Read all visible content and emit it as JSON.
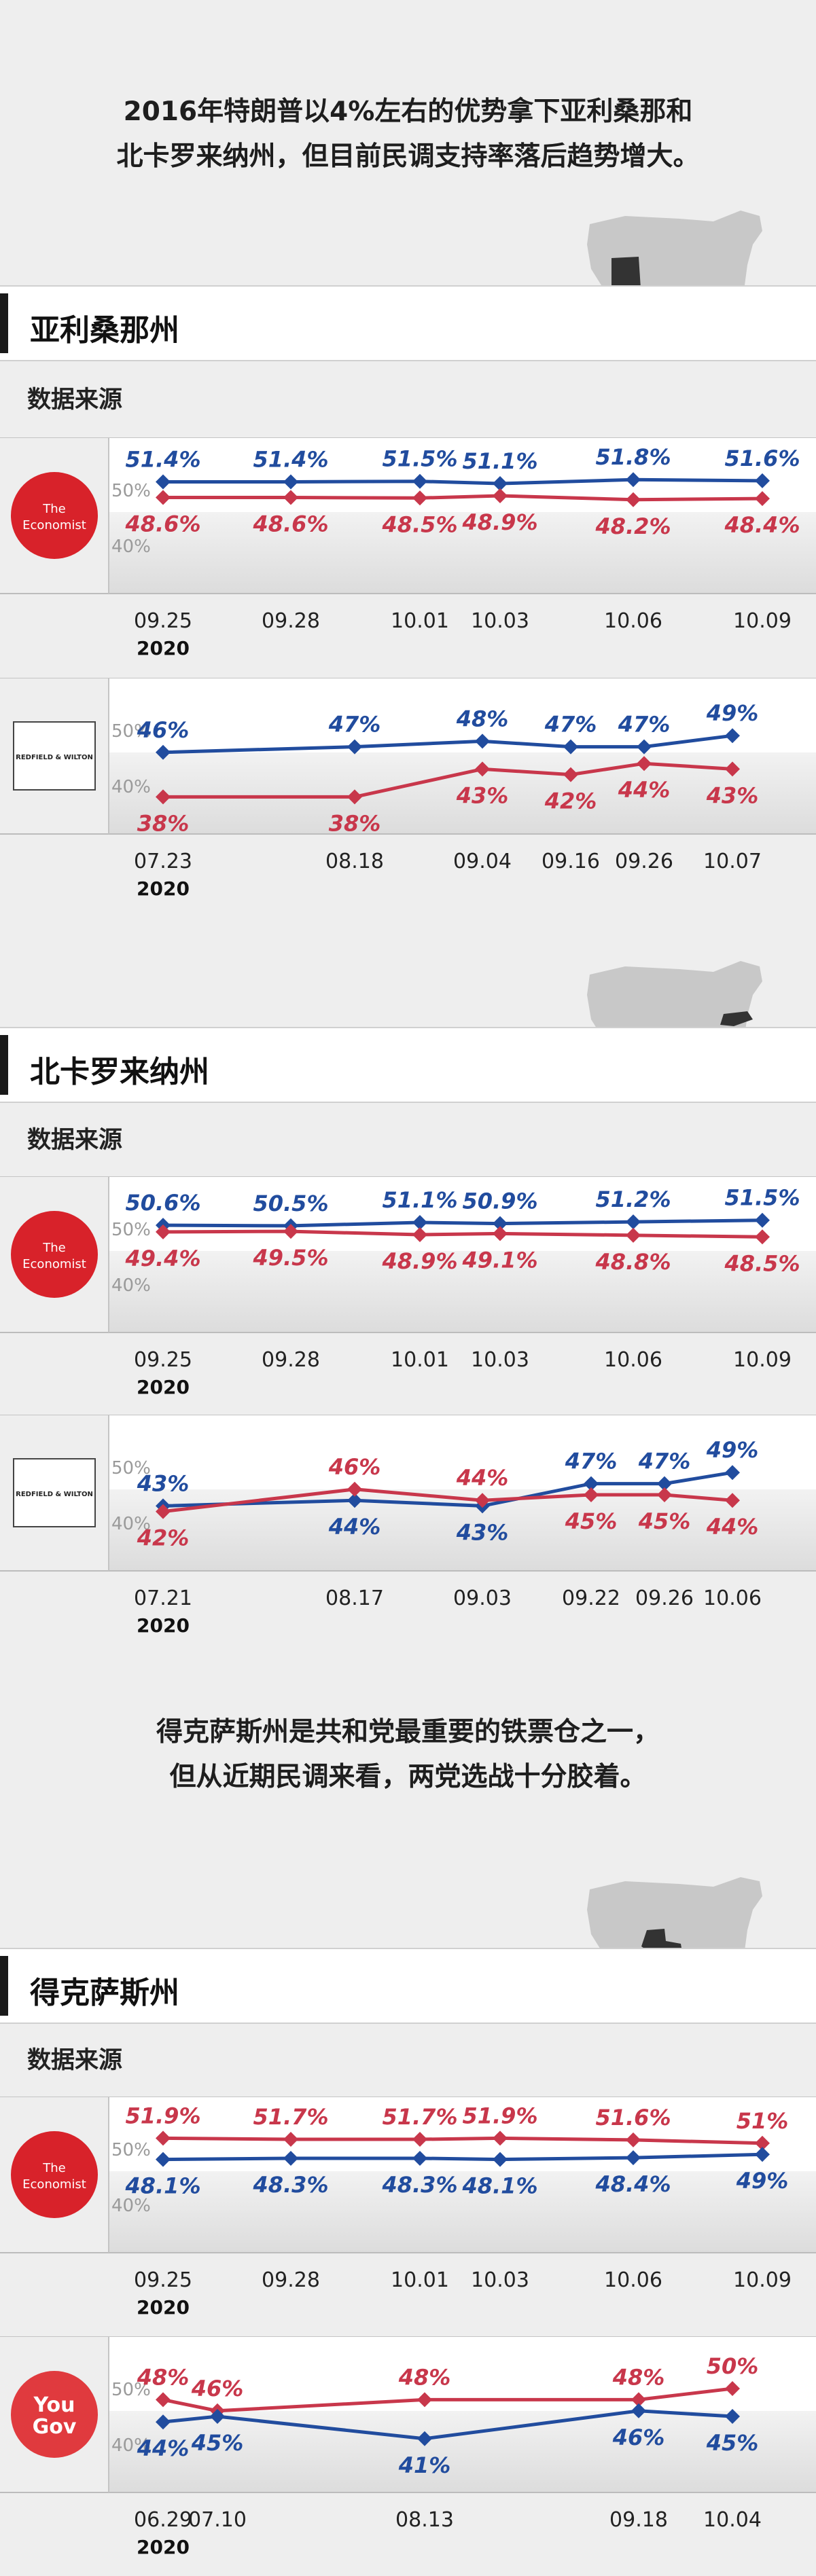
{
  "colors": {
    "blue": "#214c9e",
    "red": "#c8374b",
    "background": "#eeeeee",
    "map_gray": "#c8c8c8",
    "map_dark": "#333333"
  },
  "intro_lines": [
    "2016年特朗普以4%左右的优势拿下亚利桑那和",
    "北卡罗来纳州，但目前民调支持率落后趋势增大。"
  ],
  "texas_intro_lines": [
    "得克萨斯州是共和党最重要的铁票仓之一，",
    "但从近期民调来看，两党选战十分胶着。"
  ],
  "source_label": "数据来源",
  "states": [
    {
      "name": "亚利桑那州",
      "map_icon": "us-map-arizona-icon"
    },
    {
      "name": "北卡罗来纳州",
      "map_icon": "us-map-north-carolina-icon"
    },
    {
      "name": "得克萨斯州",
      "map_icon": "us-map-texas-icon"
    }
  ],
  "logos": {
    "economist": {
      "line1": "The",
      "line2": "Economist"
    },
    "redfield": {
      "text": "REDFIELD & WILTON"
    },
    "yougov": {
      "line1": "You",
      "line2": "Gov"
    }
  },
  "chart_data": [
    {
      "type": "line",
      "state": "亚利桑那州",
      "source": "The Economist",
      "x": [
        "09.25",
        "09.28",
        "10.01",
        "10.03",
        "10.06",
        "10.09"
      ],
      "year": "2020",
      "ytick_labels": [
        "50%",
        "40%"
      ],
      "ylim": [
        35,
        55
      ],
      "series": [
        {
          "color": "blue",
          "values": [
            51.4,
            51.4,
            51.5,
            51.1,
            51.8,
            51.6
          ],
          "labels": [
            "51.4%",
            "51.4%",
            "51.5%",
            "51.1%",
            "51.8%",
            "51.6%"
          ]
        },
        {
          "color": "red",
          "values": [
            48.6,
            48.6,
            48.5,
            48.9,
            48.2,
            48.4
          ],
          "labels": [
            "48.6%",
            "48.6%",
            "48.5%",
            "48.9%",
            "48.2%",
            "48.4%"
          ]
        }
      ]
    },
    {
      "type": "line",
      "state": "亚利桑那州",
      "source": "Redfield & Wilton",
      "x": [
        "07.23",
        "08.18",
        "09.04",
        "09.16",
        "09.26",
        "10.07"
      ],
      "year": "2020",
      "ytick_labels": [
        "50%",
        "40%"
      ],
      "ylim": [
        35,
        55
      ],
      "series": [
        {
          "color": "blue",
          "values": [
            46,
            47,
            48,
            47,
            47,
            49
          ],
          "labels": [
            "46%",
            "47%",
            "48%",
            "47%",
            "47%",
            "49%"
          ]
        },
        {
          "color": "red",
          "values": [
            38,
            38,
            43,
            42,
            44,
            43
          ],
          "labels": [
            "38%",
            "38%",
            "43%",
            "42%",
            "44%",
            "43%"
          ]
        }
      ]
    },
    {
      "type": "line",
      "state": "北卡罗来纳州",
      "source": "The Economist",
      "x": [
        "09.25",
        "09.28",
        "10.01",
        "10.03",
        "10.06",
        "10.09"
      ],
      "year": "2020",
      "ytick_labels": [
        "50%",
        "40%"
      ],
      "ylim": [
        35,
        55
      ],
      "series": [
        {
          "color": "blue",
          "values": [
            50.6,
            50.5,
            51.1,
            50.9,
            51.2,
            51.5
          ],
          "labels": [
            "50.6%",
            "50.5%",
            "51.1%",
            "50.9%",
            "51.2%",
            "51.5%"
          ]
        },
        {
          "color": "red",
          "values": [
            49.4,
            49.5,
            48.9,
            49.1,
            48.8,
            48.5
          ],
          "labels": [
            "49.4%",
            "49.5%",
            "48.9%",
            "49.1%",
            "48.8%",
            "48.5%"
          ]
        }
      ]
    },
    {
      "type": "line",
      "state": "北卡罗来纳州",
      "source": "Redfield & Wilton",
      "x": [
        "07.21",
        "08.17",
        "09.03",
        "09.22",
        "09.26",
        "10.06"
      ],
      "year": "2020",
      "ytick_labels": [
        "50%",
        "40%"
      ],
      "ylim": [
        35,
        55
      ],
      "series": [
        {
          "color": "blue",
          "values": [
            43,
            44,
            43,
            47,
            47,
            49
          ],
          "labels": [
            "43%",
            "44%",
            "43%",
            "47%",
            "47%",
            "49%"
          ]
        },
        {
          "color": "red",
          "values": [
            42,
            46,
            44,
            45,
            45,
            44
          ],
          "labels": [
            "42%",
            "46%",
            "44%",
            "45%",
            "45%",
            "44%"
          ]
        }
      ]
    },
    {
      "type": "line",
      "state": "得克萨斯州",
      "source": "The Economist",
      "x": [
        "09.25",
        "09.28",
        "10.01",
        "10.03",
        "10.06",
        "10.09"
      ],
      "year": "2020",
      "ytick_labels": [
        "50%",
        "40%"
      ],
      "ylim": [
        35,
        55
      ],
      "series": [
        {
          "color": "red",
          "values": [
            51.9,
            51.7,
            51.7,
            51.9,
            51.6,
            51
          ],
          "labels": [
            "51.9%",
            "51.7%",
            "51.7%",
            "51.9%",
            "51.6%",
            "51%"
          ]
        },
        {
          "color": "blue",
          "values": [
            48.1,
            48.3,
            48.3,
            48.1,
            48.4,
            49
          ],
          "labels": [
            "48.1%",
            "48.3%",
            "48.3%",
            "48.1%",
            "48.4%",
            "49%"
          ]
        }
      ]
    },
    {
      "type": "line",
      "state": "得克萨斯州",
      "source": "YouGov",
      "x": [
        "06.29",
        "07.10",
        "08.13",
        "09.18",
        "10.04"
      ],
      "year": "2020",
      "ytick_labels": [
        "50%",
        "40%"
      ],
      "ylim": [
        35,
        55
      ],
      "series": [
        {
          "color": "red",
          "values": [
            48,
            46,
            48,
            48,
            50
          ],
          "labels": [
            "48%",
            "46%",
            "48%",
            "48%",
            "50%"
          ]
        },
        {
          "color": "blue",
          "values": [
            44,
            45,
            41,
            46,
            45
          ],
          "labels": [
            "44%",
            "45%",
            "41%",
            "46%",
            "45%"
          ]
        }
      ]
    }
  ]
}
